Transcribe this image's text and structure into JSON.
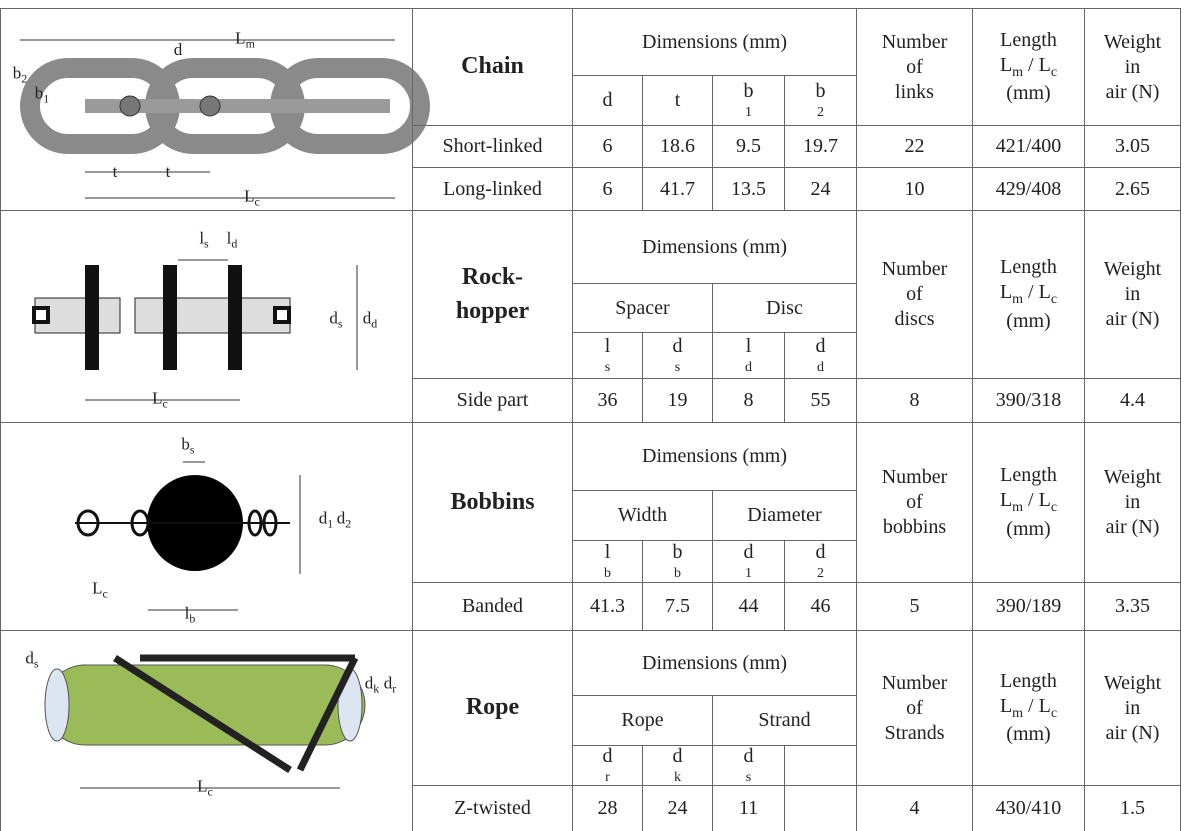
{
  "sections": [
    {
      "name": "Chain",
      "dimensions_header": "Dimensions (mm)",
      "symbols": [
        [
          "d"
        ],
        [
          "t"
        ],
        [
          "b",
          {
            "sub": "1"
          }
        ],
        [
          "b",
          {
            "sub": "2"
          }
        ]
      ],
      "count_header": [
        "Number",
        "of",
        "links"
      ],
      "length_header": [
        [
          "Length"
        ],
        [
          "L",
          {
            "sub": "m"
          },
          " / L",
          {
            "sub": "c"
          }
        ],
        [
          "(mm)"
        ]
      ],
      "weight_header": [
        "Weight",
        "in",
        "air (N)"
      ],
      "rows": [
        {
          "label": "Short-linked",
          "dimensions": [
            6,
            18.6,
            9.5,
            19.7
          ],
          "count": 22,
          "length": "421/400",
          "weight": 3.05
        },
        {
          "label": "Long-linked",
          "dimensions": [
            6,
            41.7,
            13.5,
            24
          ],
          "count": 10,
          "length": "429/408",
          "weight": 2.65
        }
      ],
      "diagram_labels": [
        [
          "L",
          {
            "sub": "m"
          }
        ],
        [
          "d"
        ],
        [
          "b",
          {
            "sub": "2"
          }
        ],
        [
          "b",
          {
            "sub": "1"
          }
        ],
        [
          "t"
        ],
        [
          "t"
        ],
        [
          "L",
          {
            "sub": "c"
          }
        ]
      ]
    },
    {
      "name": "Rock-hopper",
      "dimensions_header": "Dimensions (mm)",
      "groups": [
        "Spacer",
        "Disc"
      ],
      "symbols": [
        [
          "l",
          {
            "sub": "s"
          }
        ],
        [
          "d",
          {
            "sub": "s"
          }
        ],
        [
          "l",
          {
            "sub": "d"
          }
        ],
        [
          "d",
          {
            "sub": "d"
          }
        ]
      ],
      "count_header": [
        "Number",
        "of",
        "discs"
      ],
      "length_header": [
        [
          "Length"
        ],
        [
          "L",
          {
            "sub": "m"
          },
          " / L",
          {
            "sub": "c"
          }
        ],
        [
          "(mm)"
        ]
      ],
      "weight_header": [
        "Weight",
        "in",
        "air (N)"
      ],
      "rows": [
        {
          "label": "Side part",
          "dimensions": [
            36,
            19,
            8,
            55
          ],
          "count": 8,
          "length": "390/318",
          "weight": 4.4
        }
      ],
      "diagram_labels": [
        [
          "l",
          {
            "sub": "s"
          }
        ],
        [
          "l",
          {
            "sub": "d"
          }
        ],
        [
          "d",
          {
            "sub": "s"
          }
        ],
        [
          "d",
          {
            "sub": "d"
          }
        ],
        [
          "L",
          {
            "sub": "c"
          }
        ]
      ]
    },
    {
      "name": "Bobbins",
      "dimensions_header": "Dimensions (mm)",
      "groups": [
        "Width",
        "Diameter"
      ],
      "symbols": [
        [
          "l",
          {
            "sub": "b"
          }
        ],
        [
          "b",
          {
            "sub": "b"
          }
        ],
        [
          "d",
          {
            "sub": "1"
          }
        ],
        [
          "d",
          {
            "sub": "2"
          }
        ]
      ],
      "count_header": [
        "Number",
        "of",
        "bobbins"
      ],
      "length_header": [
        [
          "Length"
        ],
        [
          "L",
          {
            "sub": "m"
          },
          " / L",
          {
            "sub": "c"
          }
        ],
        [
          "(mm)"
        ]
      ],
      "weight_header": [
        "Weight",
        "in",
        "air (N)"
      ],
      "rows": [
        {
          "label": "Banded",
          "dimensions": [
            41.3,
            7.5,
            44,
            46
          ],
          "count": 5,
          "length": "390/189",
          "weight": 3.35
        }
      ],
      "diagram_labels": [
        [
          "b",
          {
            "sub": "s"
          }
        ],
        [
          "d",
          {
            "sub": "1"
          }
        ],
        [
          "d",
          {
            "sub": "2"
          }
        ],
        [
          "L",
          {
            "sub": "c"
          }
        ],
        [
          "l",
          {
            "sub": "b"
          }
        ]
      ]
    },
    {
      "name": "Rope",
      "dimensions_header": "Dimensions (mm)",
      "groups": [
        "Rope",
        "Strand"
      ],
      "symbols": [
        [
          "d",
          {
            "sub": "r"
          }
        ],
        [
          "d",
          {
            "sub": "k"
          }
        ],
        [
          "d",
          {
            "sub": "s"
          }
        ]
      ],
      "count_header": [
        "Number",
        "of",
        "Strands"
      ],
      "length_header": [
        [
          "Length"
        ],
        [
          "L",
          {
            "sub": "m"
          },
          " / L",
          {
            "sub": "c"
          }
        ],
        [
          "(mm)"
        ]
      ],
      "weight_header": [
        "Weight",
        "in",
        "air (N)"
      ],
      "rows": [
        {
          "label": "Z-twisted",
          "dimensions": [
            28,
            24,
            11
          ],
          "count": 4,
          "length": "430/410",
          "weight": 1.5
        }
      ],
      "diagram_labels": [
        [
          "d",
          {
            "sub": "s"
          }
        ],
        [
          "d",
          {
            "sub": "k"
          }
        ],
        [
          "d",
          {
            "sub": "r"
          }
        ],
        [
          "L",
          {
            "sub": "c"
          }
        ]
      ]
    }
  ]
}
